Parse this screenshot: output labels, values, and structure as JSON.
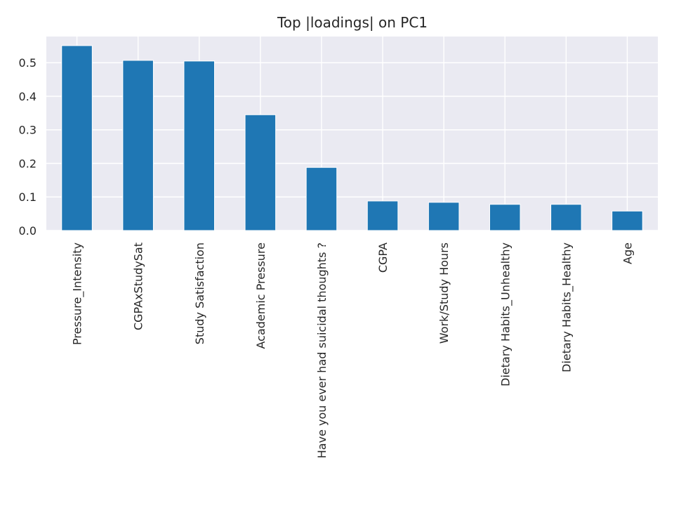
{
  "chart_data": {
    "type": "bar",
    "title": "Top |loadings| on PC1",
    "xlabel": "",
    "ylabel": "",
    "categories": [
      "Pressure_Intensity",
      "CGPAxStudySat",
      "Study Satisfaction",
      "Academic Pressure",
      "Have you ever had suicidal thoughts ?",
      "CGPA",
      "Work/Study Hours",
      "Dietary Habits_Unhealthy",
      "Dietary Habits_Healthy",
      "Age"
    ],
    "values": [
      0.551,
      0.507,
      0.505,
      0.345,
      0.188,
      0.088,
      0.084,
      0.078,
      0.078,
      0.058
    ],
    "ylim": [
      0,
      0.578
    ],
    "yticks": [
      0.0,
      0.1,
      0.2,
      0.3,
      0.4,
      0.5
    ],
    "ytick_labels": [
      "0.0",
      "0.1",
      "0.2",
      "0.3",
      "0.4",
      "0.5"
    ],
    "grid": true,
    "legend": "none",
    "colors": {
      "bar": "#1f77b4",
      "background": "#eaeaf2",
      "grid": "#ffffff"
    }
  }
}
